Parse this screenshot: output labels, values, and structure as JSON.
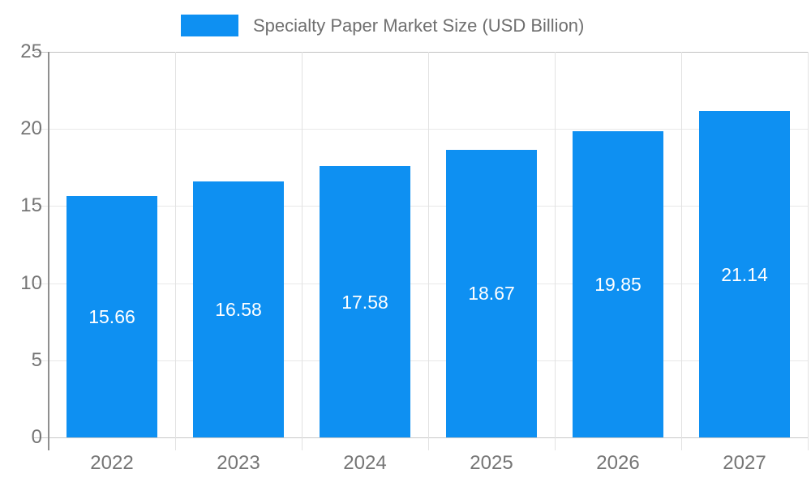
{
  "legend": {
    "label": "Specialty Paper Market Size (USD Billion)"
  },
  "chart_data": {
    "type": "bar",
    "title": "Specialty Paper Market Size (USD Billion)",
    "categories": [
      "2022",
      "2023",
      "2024",
      "2025",
      "2026",
      "2027"
    ],
    "series": [
      {
        "name": "Specialty Paper Market Size (USD Billion)",
        "values": [
          15.66,
          16.58,
          17.58,
          18.67,
          19.85,
          21.14
        ]
      }
    ],
    "value_labels": [
      "15.66",
      "16.58",
      "17.58",
      "18.67",
      "19.85",
      "21.14"
    ],
    "xlabel": "",
    "ylabel": "",
    "ylim": [
      0,
      25
    ],
    "yticks": [
      0,
      5,
      10,
      15,
      20,
      25
    ],
    "grid": true,
    "legend_position": "top",
    "colors": {
      "bar": "#0e90f2",
      "value_label": "#ffffff",
      "tick_label": "#757575",
      "legend_text": "#6f6f6f",
      "gridline": "#e8e8e8",
      "plot_top_border": "#c2c2c2",
      "baseline": "#c9c9c9",
      "y_axis_line": "#8f8f8f"
    }
  }
}
